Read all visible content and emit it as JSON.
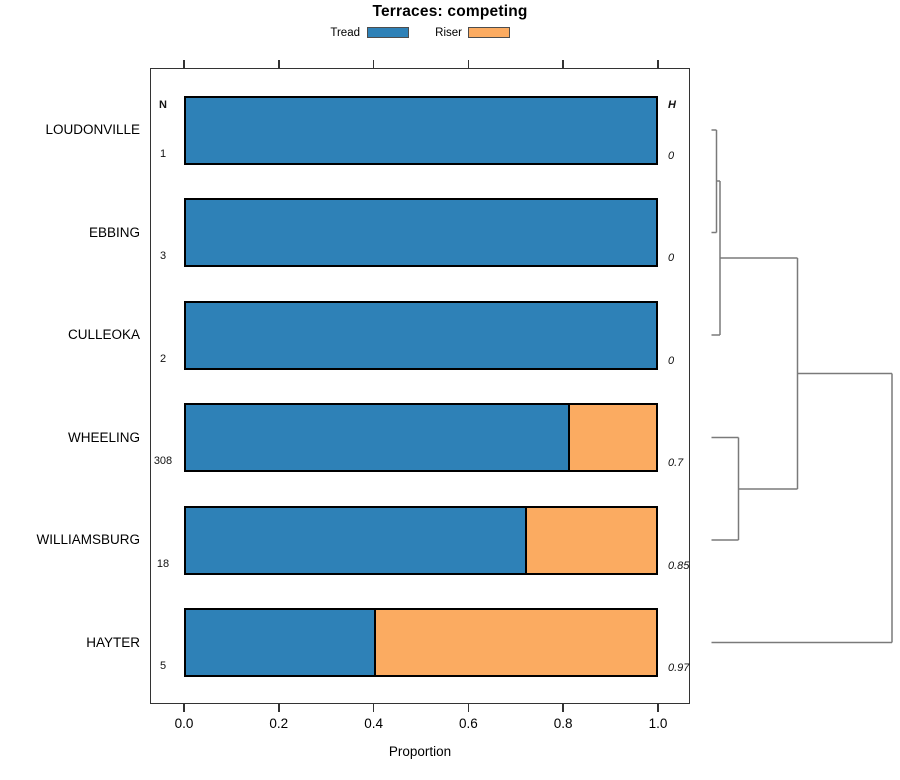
{
  "chart": {
    "title": "Terraces: competing",
    "colors": {
      "tread": "#2e81b7",
      "riser": "#fbab61",
      "bar_border": "#000000",
      "axis": "#333333",
      "dendrogram": "#7a7a7a"
    }
  },
  "chart_data": {
    "type": "bar",
    "orientation": "horizontal",
    "stacked": true,
    "title": "Terraces: competing",
    "xlabel": "Proportion",
    "xlim": [
      0,
      1
    ],
    "x_tick_values": [
      0.0,
      0.2,
      0.4,
      0.6,
      0.8,
      1.0
    ],
    "x_tick_labels": [
      "0.0",
      "0.2",
      "0.4",
      "0.6",
      "0.8",
      "1.0"
    ],
    "grid": false,
    "legend_position": "top-center",
    "legend": [
      "Tread",
      "Riser"
    ],
    "categories": [
      "LOUDONVILLE",
      "EBBING",
      "CULLEOKA",
      "WHEELING",
      "WILLIAMSBURG",
      "HAYTER"
    ],
    "series": [
      {
        "name": "Tread",
        "color": "#2e81b7",
        "values": [
          1.0,
          1.0,
          1.0,
          0.81,
          0.72,
          0.4
        ]
      },
      {
        "name": "Riser",
        "color": "#fbab61",
        "values": [
          0.0,
          0.0,
          0.0,
          0.19,
          0.28,
          0.6
        ]
      }
    ],
    "annotations": {
      "n_header": "N",
      "n_values": [
        "1",
        "3",
        "2",
        "308",
        "18",
        "5"
      ],
      "h_header": "H",
      "h_values": [
        "0",
        "0",
        "0",
        "0.7",
        "0.85",
        "0.97"
      ]
    },
    "dendrogram": {
      "color": "#7a7a7a",
      "segments": [
        [
          711.5,
          130,
          716.5,
          130
        ],
        [
          711.5,
          232.5,
          716.5,
          232.5
        ],
        [
          716.5,
          130,
          716.5,
          232.5
        ],
        [
          716.5,
          181,
          720,
          181
        ],
        [
          711.5,
          335,
          720,
          335
        ],
        [
          720,
          181,
          720,
          335
        ],
        [
          720,
          258,
          797.5,
          258
        ],
        [
          711.5,
          437.5,
          738.5,
          437.5
        ],
        [
          711.5,
          540,
          738.5,
          540
        ],
        [
          738.5,
          437.5,
          738.5,
          540
        ],
        [
          738.5,
          489,
          797.5,
          489
        ],
        [
          797.5,
          258,
          797.5,
          489
        ],
        [
          797.5,
          373.5,
          892,
          373.5
        ],
        [
          711.5,
          642.5,
          892,
          642.5
        ],
        [
          892,
          373.5,
          892,
          642.5
        ]
      ]
    }
  }
}
